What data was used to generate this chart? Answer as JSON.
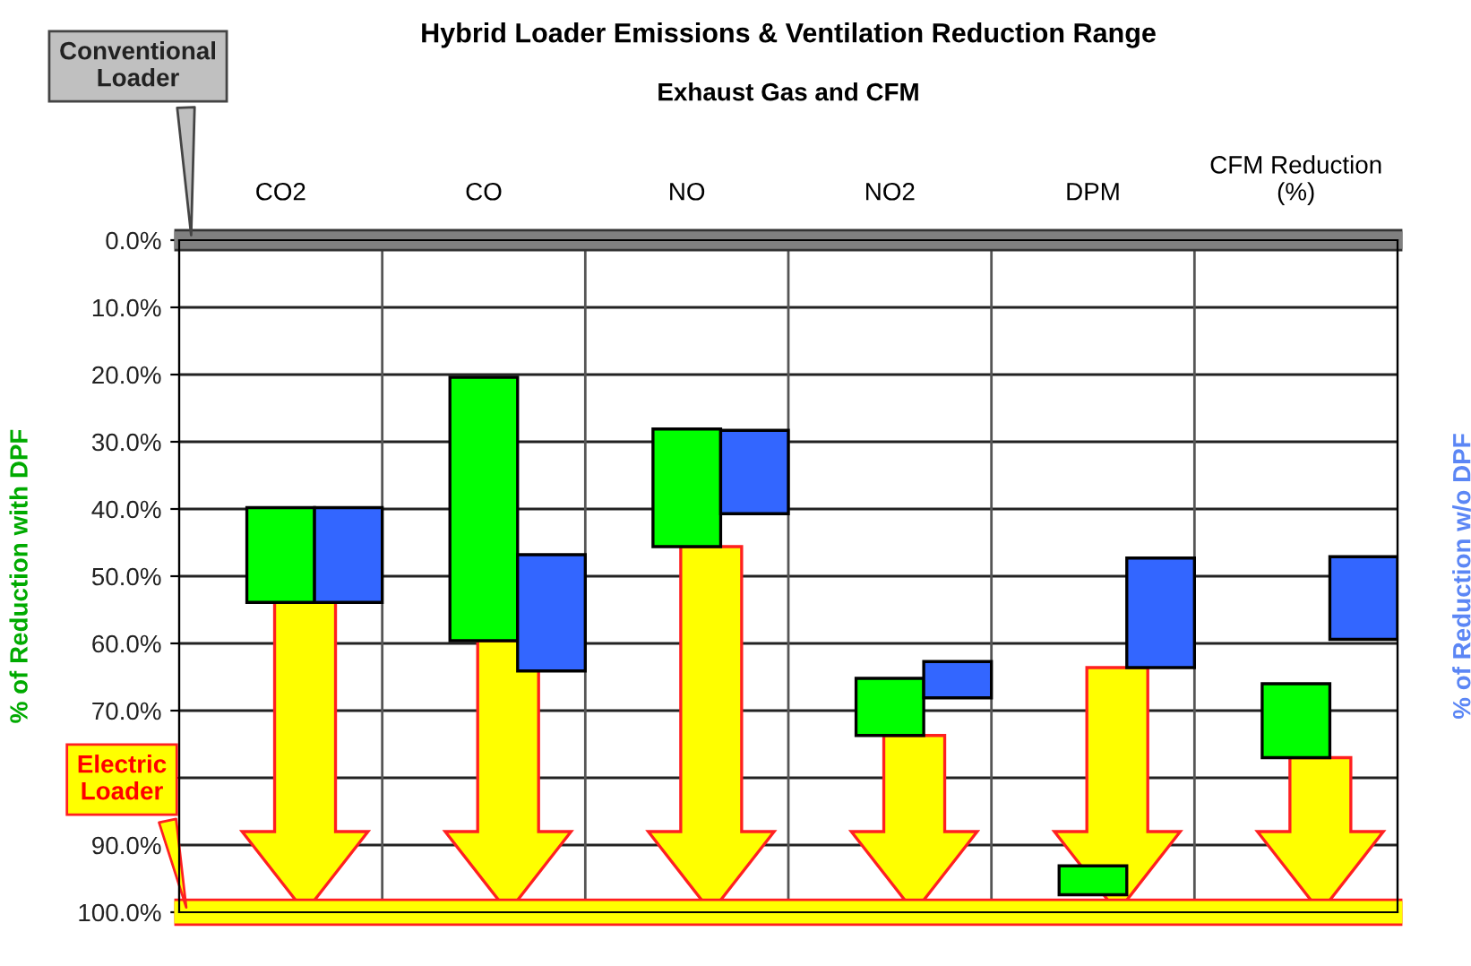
{
  "chart_data": {
    "type": "bar",
    "title": "Hybrid Loader Emissions & Ventilation Reduction Range",
    "xlabel": "Exhaust Gas and CFM",
    "ylabel": "% of Reduction with DPF",
    "y2label": "% of Reduction w/o DPF",
    "categories": [
      "CO2",
      "CO",
      "NO",
      "NO2",
      "DPM",
      "CFM Reduction\n(%)"
    ],
    "series": [
      {
        "color": "#00ff00",
        "base": [
          39.8,
          20.4,
          28.1,
          65.2,
          93.1,
          66.0
        ],
        "values": [
          14.1,
          39.2,
          17.5,
          8.5,
          4.3,
          11.0
        ]
      },
      {
        "color": "#3366ff",
        "base": [
          39.8,
          46.8,
          28.3,
          62.7,
          47.3,
          47.1
        ],
        "values": [
          14.1,
          17.3,
          12.4,
          5.4,
          16.3,
          12.3
        ]
      }
    ],
    "ylim": [
      100,
      0
    ],
    "yticks": [
      {
        "value": 0,
        "label": "0.0%"
      },
      {
        "value": 10,
        "label": "10.0%"
      },
      {
        "value": 20,
        "label": "20.0%"
      },
      {
        "value": 30,
        "label": "30.0%"
      },
      {
        "value": 40,
        "label": "40.0%"
      },
      {
        "value": 50,
        "label": "50.0%"
      },
      {
        "value": 60,
        "label": "60.0%"
      },
      {
        "value": 70,
        "label": "70.0%"
      },
      {
        "value": 80,
        "label": null
      },
      {
        "value": 90,
        "label": "90.0%"
      },
      {
        "value": 100,
        "label": "100.0%"
      }
    ],
    "grid": true,
    "ref_lines": [
      {
        "axis": "y",
        "value": 0,
        "label": "Conventional Loader",
        "color": "#808080"
      },
      {
        "axis": "y",
        "value": 100,
        "label": "Electric Loader",
        "color": "#ffff00"
      }
    ]
  }
}
